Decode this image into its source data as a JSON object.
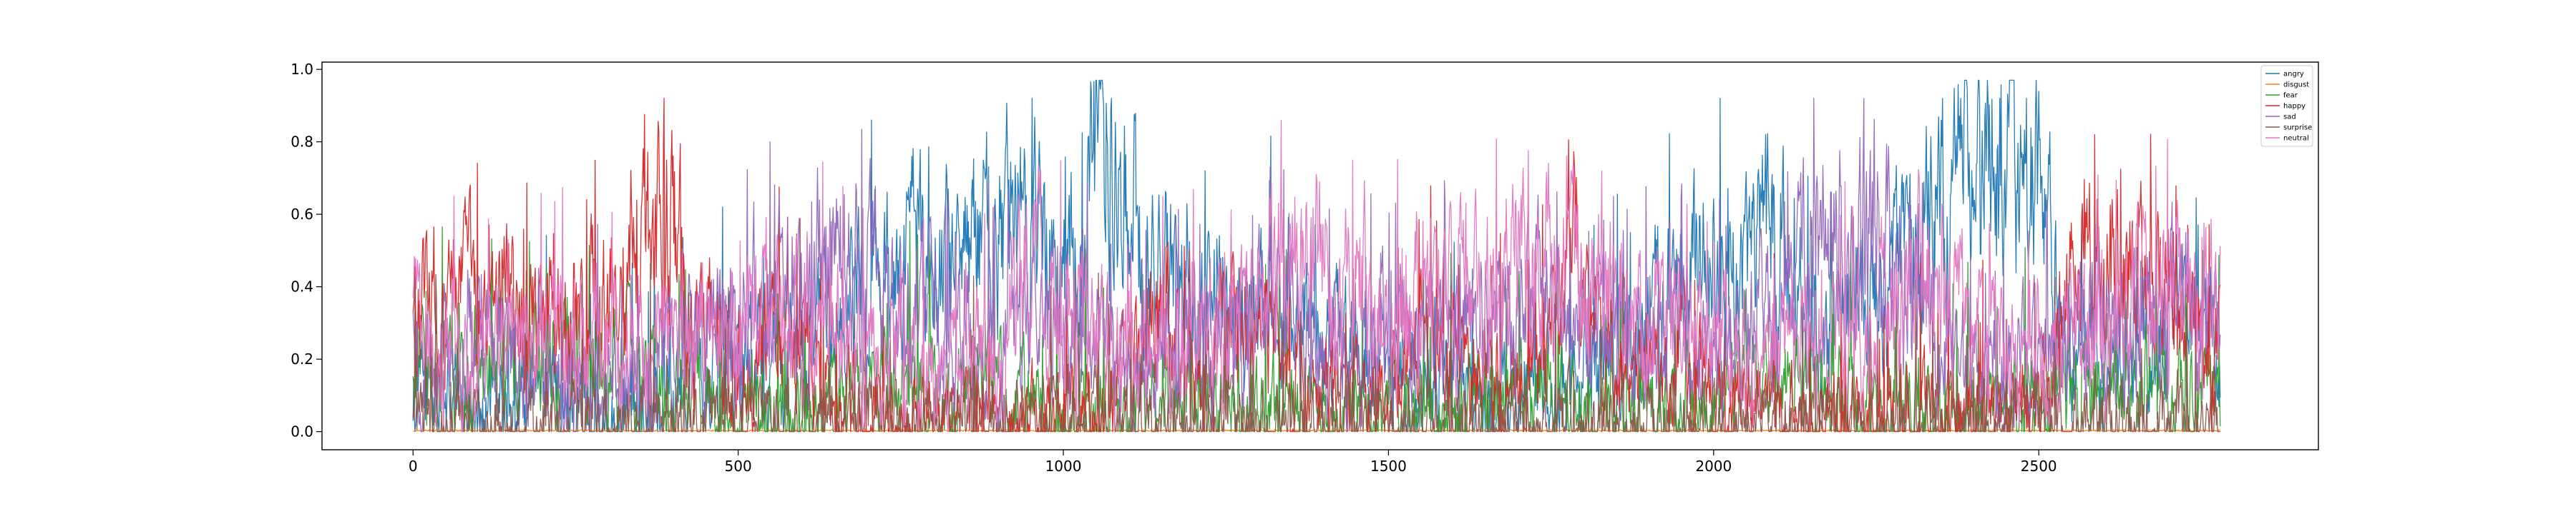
{
  "chart_data": {
    "type": "line",
    "title": "",
    "xlabel": "",
    "ylabel": "",
    "xlim": [
      -140,
      2930
    ],
    "ylim": [
      -0.05,
      1.02
    ],
    "x_ticks": [
      0,
      500,
      1000,
      1500,
      2000,
      2500
    ],
    "x_tick_labels": [
      "0",
      "500",
      "1000",
      "1500",
      "2000",
      "2500"
    ],
    "y_ticks": [
      0.0,
      0.2,
      0.4,
      0.6,
      0.8,
      1.0
    ],
    "y_tick_labels": [
      "0.0",
      "0.2",
      "0.4",
      "0.6",
      "0.8",
      "1.0"
    ],
    "n_points": 2780,
    "legend_position": "top-right",
    "grid": false,
    "series": [
      {
        "name": "angry",
        "color": "#1f77b4",
        "profile": [
          [
            0,
            0.12
          ],
          [
            100,
            0.08
          ],
          [
            200,
            0.1
          ],
          [
            300,
            0.06
          ],
          [
            400,
            0.08
          ],
          [
            500,
            0.2
          ],
          [
            600,
            0.18
          ],
          [
            700,
            0.42
          ],
          [
            800,
            0.48
          ],
          [
            900,
            0.52
          ],
          [
            950,
            0.6
          ],
          [
            1000,
            0.35
          ],
          [
            1050,
            0.72
          ],
          [
            1100,
            0.62
          ],
          [
            1150,
            0.45
          ],
          [
            1200,
            0.3
          ],
          [
            1250,
            0.35
          ],
          [
            1300,
            0.4
          ],
          [
            1400,
            0.25
          ],
          [
            1500,
            0.15
          ],
          [
            1600,
            0.12
          ],
          [
            1700,
            0.1
          ],
          [
            1800,
            0.15
          ],
          [
            1900,
            0.3
          ],
          [
            1950,
            0.45
          ],
          [
            2000,
            0.5
          ],
          [
            2050,
            0.42
          ],
          [
            2100,
            0.55
          ],
          [
            2150,
            0.25
          ],
          [
            2200,
            0.3
          ],
          [
            2300,
            0.48
          ],
          [
            2350,
            0.62
          ],
          [
            2400,
            0.72
          ],
          [
            2450,
            0.78
          ],
          [
            2500,
            0.68
          ],
          [
            2550,
            0.25
          ],
          [
            2600,
            0.2
          ],
          [
            2700,
            0.3
          ],
          [
            2780,
            0.25
          ]
        ]
      },
      {
        "name": "disgust",
        "color": "#ff7f0e",
        "profile": [
          [
            0,
            0.003
          ],
          [
            2780,
            0.003
          ]
        ]
      },
      {
        "name": "fear",
        "color": "#2ca02c",
        "profile": [
          [
            0,
            0.15
          ],
          [
            100,
            0.18
          ],
          [
            200,
            0.2
          ],
          [
            300,
            0.22
          ],
          [
            400,
            0.1
          ],
          [
            500,
            0.05
          ],
          [
            600,
            0.06
          ],
          [
            700,
            0.12
          ],
          [
            800,
            0.15
          ],
          [
            900,
            0.1
          ],
          [
            1000,
            0.06
          ],
          [
            1100,
            0.05
          ],
          [
            1200,
            0.08
          ],
          [
            1300,
            0.06
          ],
          [
            1400,
            0.05
          ],
          [
            1500,
            0.04
          ],
          [
            1600,
            0.05
          ],
          [
            1700,
            0.08
          ],
          [
            1800,
            0.06
          ],
          [
            1900,
            0.08
          ],
          [
            2000,
            0.1
          ],
          [
            2100,
            0.12
          ],
          [
            2200,
            0.08
          ],
          [
            2300,
            0.05
          ],
          [
            2400,
            0.04
          ],
          [
            2500,
            0.08
          ],
          [
            2600,
            0.15
          ],
          [
            2700,
            0.12
          ],
          [
            2780,
            0.1
          ]
        ]
      },
      {
        "name": "happy",
        "color": "#d62728",
        "profile": [
          [
            0,
            0.3
          ],
          [
            50,
            0.4
          ],
          [
            100,
            0.35
          ],
          [
            200,
            0.3
          ],
          [
            300,
            0.4
          ],
          [
            350,
            0.5
          ],
          [
            400,
            0.55
          ],
          [
            450,
            0.3
          ],
          [
            500,
            0.2
          ],
          [
            550,
            0.25
          ],
          [
            600,
            0.2
          ],
          [
            700,
            0.05
          ],
          [
            800,
            0.04
          ],
          [
            900,
            0.05
          ],
          [
            1000,
            0.04
          ],
          [
            1100,
            0.15
          ],
          [
            1150,
            0.3
          ],
          [
            1200,
            0.1
          ],
          [
            1250,
            0.3
          ],
          [
            1300,
            0.25
          ],
          [
            1400,
            0.1
          ],
          [
            1500,
            0.08
          ],
          [
            1550,
            0.25
          ],
          [
            1600,
            0.2
          ],
          [
            1700,
            0.1
          ],
          [
            1780,
            0.6
          ],
          [
            1820,
            0.3
          ],
          [
            1900,
            0.15
          ],
          [
            1950,
            0.2
          ],
          [
            2000,
            0.1
          ],
          [
            2100,
            0.05
          ],
          [
            2200,
            0.04
          ],
          [
            2300,
            0.05
          ],
          [
            2400,
            0.04
          ],
          [
            2500,
            0.1
          ],
          [
            2550,
            0.4
          ],
          [
            2600,
            0.45
          ],
          [
            2700,
            0.35
          ],
          [
            2780,
            0.25
          ]
        ]
      },
      {
        "name": "sad",
        "color": "#9467bd",
        "profile": [
          [
            0,
            0.2
          ],
          [
            100,
            0.25
          ],
          [
            200,
            0.15
          ],
          [
            300,
            0.12
          ],
          [
            400,
            0.2
          ],
          [
            500,
            0.35
          ],
          [
            600,
            0.45
          ],
          [
            650,
            0.55
          ],
          [
            700,
            0.4
          ],
          [
            800,
            0.3
          ],
          [
            900,
            0.25
          ],
          [
            1000,
            0.3
          ],
          [
            1100,
            0.15
          ],
          [
            1200,
            0.2
          ],
          [
            1300,
            0.35
          ],
          [
            1400,
            0.2
          ],
          [
            1500,
            0.25
          ],
          [
            1600,
            0.3
          ],
          [
            1700,
            0.4
          ],
          [
            1800,
            0.25
          ],
          [
            1900,
            0.3
          ],
          [
            2000,
            0.2
          ],
          [
            2100,
            0.35
          ],
          [
            2150,
            0.55
          ],
          [
            2200,
            0.58
          ],
          [
            2250,
            0.55
          ],
          [
            2300,
            0.35
          ],
          [
            2400,
            0.15
          ],
          [
            2500,
            0.2
          ],
          [
            2600,
            0.3
          ],
          [
            2700,
            0.35
          ],
          [
            2780,
            0.3
          ]
        ]
      },
      {
        "name": "surprise",
        "color": "#8c564b",
        "profile": [
          [
            0,
            0.02
          ],
          [
            2780,
            0.02
          ]
        ]
      },
      {
        "name": "neutral",
        "color": "#e377c2",
        "profile": [
          [
            0,
            0.25
          ],
          [
            100,
            0.2
          ],
          [
            200,
            0.25
          ],
          [
            300,
            0.2
          ],
          [
            400,
            0.25
          ],
          [
            500,
            0.3
          ],
          [
            600,
            0.35
          ],
          [
            700,
            0.2
          ],
          [
            800,
            0.15
          ],
          [
            900,
            0.2
          ],
          [
            950,
            0.45
          ],
          [
            1000,
            0.3
          ],
          [
            1100,
            0.2
          ],
          [
            1200,
            0.25
          ],
          [
            1300,
            0.35
          ],
          [
            1350,
            0.5
          ],
          [
            1400,
            0.45
          ],
          [
            1450,
            0.45
          ],
          [
            1500,
            0.3
          ],
          [
            1600,
            0.35
          ],
          [
            1700,
            0.45
          ],
          [
            1750,
            0.5
          ],
          [
            1800,
            0.35
          ],
          [
            1850,
            0.4
          ],
          [
            1900,
            0.3
          ],
          [
            2000,
            0.25
          ],
          [
            2100,
            0.2
          ],
          [
            2200,
            0.3
          ],
          [
            2300,
            0.4
          ],
          [
            2350,
            0.45
          ],
          [
            2400,
            0.25
          ],
          [
            2500,
            0.2
          ],
          [
            2600,
            0.3
          ],
          [
            2700,
            0.4
          ],
          [
            2780,
            0.35
          ]
        ]
      }
    ]
  }
}
